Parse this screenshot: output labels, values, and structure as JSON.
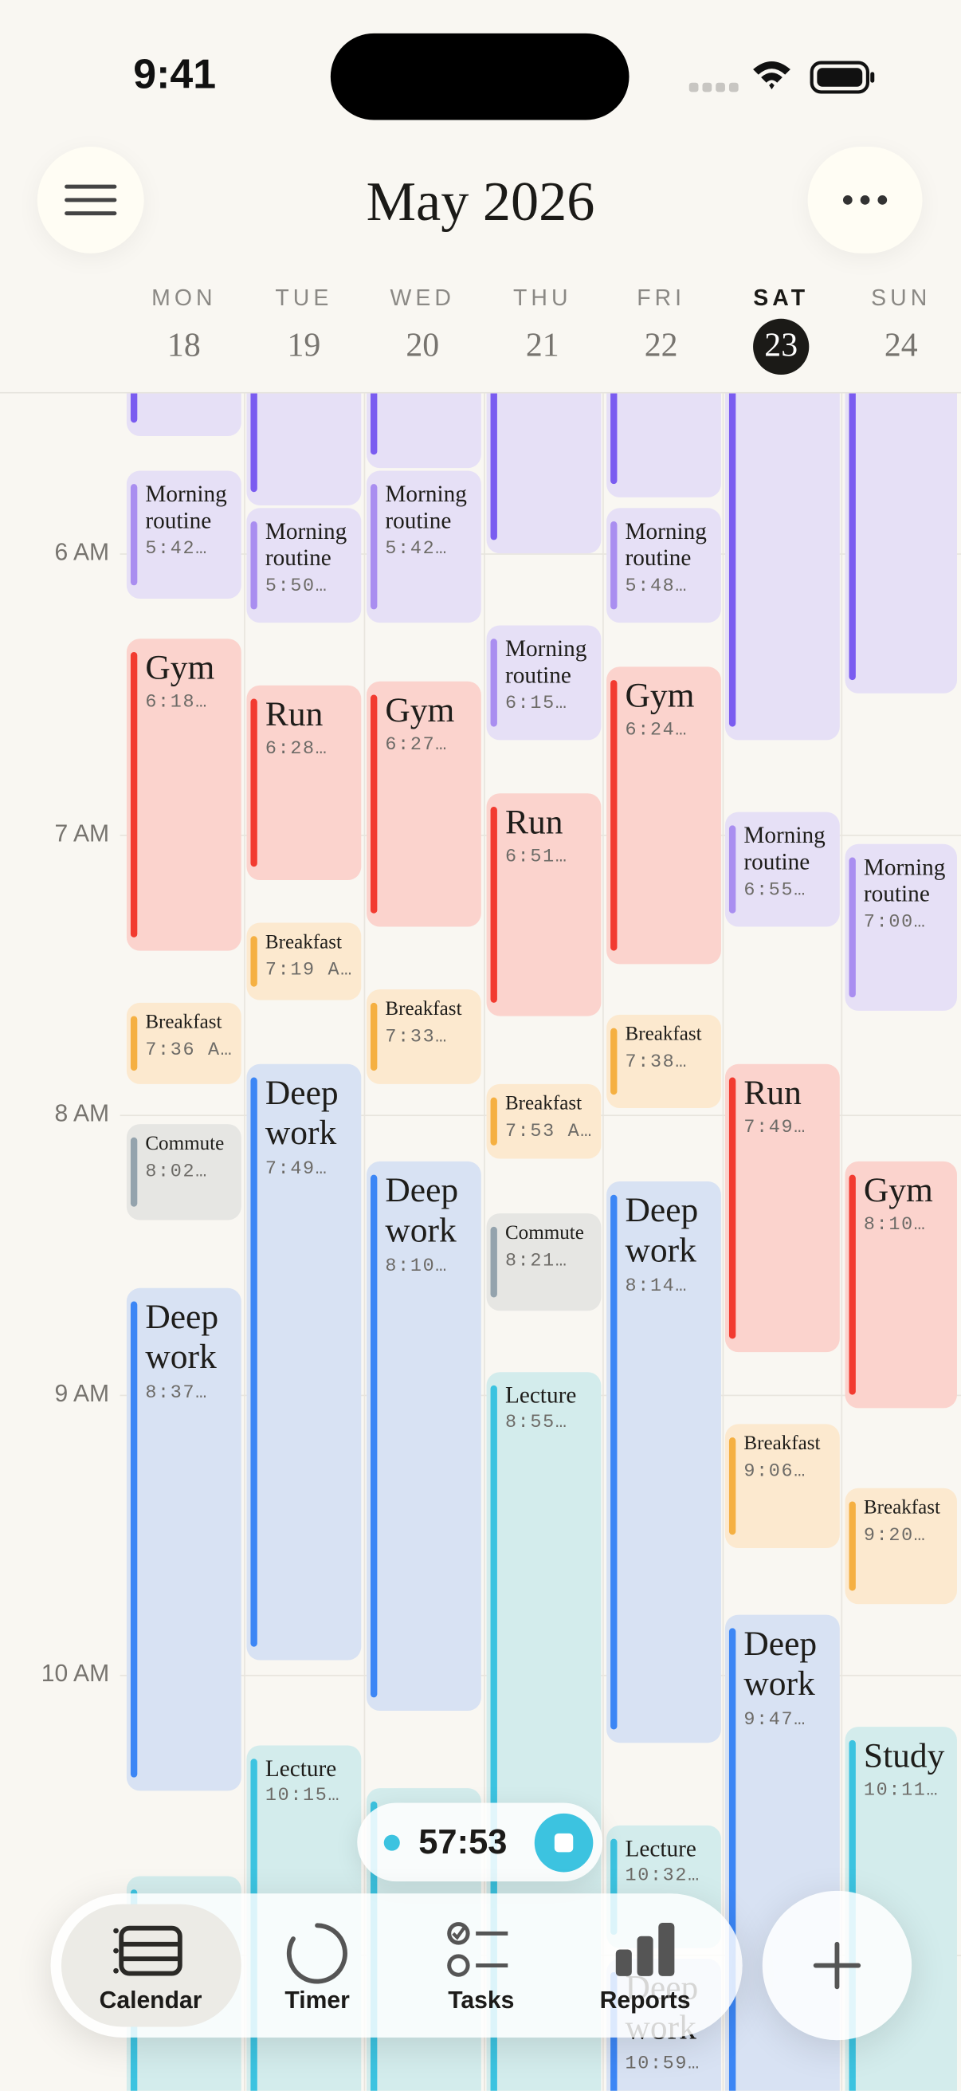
{
  "status_bar": {
    "time": "9:41"
  },
  "header": {
    "title": "May 2026"
  },
  "days": [
    {
      "name": "MON",
      "date": "18"
    },
    {
      "name": "TUE",
      "date": "19"
    },
    {
      "name": "WED",
      "date": "20"
    },
    {
      "name": "THU",
      "date": "21"
    },
    {
      "name": "FRI",
      "date": "22"
    },
    {
      "name": "SAT",
      "date": "23"
    },
    {
      "name": "SUN",
      "date": "24"
    }
  ],
  "time_labels": [
    "6 AM",
    "7 AM",
    "8 AM",
    "9 AM",
    "10 AM"
  ],
  "events": [
    [
      {
        "title": "Morning routine",
        "time": "5:42…"
      },
      {
        "title": "Gym",
        "time": "6:18…"
      },
      {
        "title": "Breakfast",
        "time": "7:36 A…"
      },
      {
        "title": "Commute",
        "time": "8:02…"
      },
      {
        "title": "Deep work",
        "time": "8:37…"
      }
    ],
    [
      {
        "title": "Morning routine",
        "time": "5:50…"
      },
      {
        "title": "Run",
        "time": "6:28…"
      },
      {
        "title": "Breakfast",
        "time": "7:19 A…"
      },
      {
        "title": "Deep work",
        "time": "7:49…"
      },
      {
        "title": "Lecture",
        "time": "10:15…"
      }
    ],
    [
      {
        "title": "Morning routine",
        "time": "5:42…"
      },
      {
        "title": "Gym",
        "time": "6:27…"
      },
      {
        "title": "Breakfast",
        "time": "7:33…"
      },
      {
        "title": "Deep work",
        "time": "8:10…"
      }
    ],
    [
      {
        "title": "Morning routine",
        "time": "6:15…"
      },
      {
        "title": "Run",
        "time": "6:51…"
      },
      {
        "title": "Breakfast",
        "time": "7:53 A…"
      },
      {
        "title": "Commute",
        "time": "8:21…"
      },
      {
        "title": "Lecture",
        "time": "8:55…"
      }
    ],
    [
      {
        "title": "Morning routine",
        "time": "5:48…"
      },
      {
        "title": "Gym",
        "time": "6:24…"
      },
      {
        "title": "Breakfast",
        "time": "7:38…"
      },
      {
        "title": "Deep work",
        "time": "8:14…"
      },
      {
        "title": "Lecture",
        "time": "10:32…"
      },
      {
        "title": "Deep work",
        "time": "10:59…"
      }
    ],
    [
      {
        "title": "Morning routine",
        "time": "6:55…"
      },
      {
        "title": "Run",
        "time": "7:49…"
      },
      {
        "title": "Breakfast",
        "time": "9:06…"
      },
      {
        "title": "Deep work",
        "time": "9:47…"
      }
    ],
    [
      {
        "title": "Morning routine",
        "time": "7:00…"
      },
      {
        "title": "Gym",
        "time": "8:10…"
      },
      {
        "title": "Breakfast",
        "time": "9:20…"
      },
      {
        "title": "Study",
        "time": "10:11…"
      }
    ]
  ],
  "timer": {
    "elapsed": "57:53"
  },
  "nav": [
    "Calendar",
    "Timer",
    "Tasks",
    "Reports"
  ]
}
